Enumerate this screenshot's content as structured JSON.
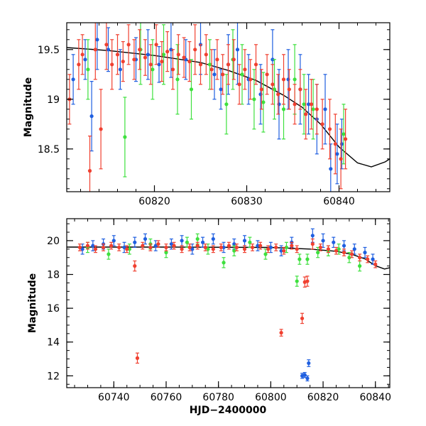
{
  "chart_data": [
    {
      "type": "scatter",
      "panel": "top",
      "title": "",
      "xlabel": "",
      "ylabel": "Magnitude",
      "xlim": [
        60810.5,
        60845.5
      ],
      "ylim": [
        19.77,
        18.07
      ],
      "y_inverted": true,
      "xticks": [
        60820,
        60830,
        60840
      ],
      "xtick_labels": [
        "60820",
        "60830",
        "60840"
      ],
      "yticks": [
        18.5,
        19,
        19.5
      ],
      "ytick_labels": [
        "18.5",
        "19",
        "19.5"
      ],
      "grid": false,
      "legend": "none",
      "colors": {
        "blue": "#1f5fe0",
        "green": "#3ee03e",
        "red": "#f04030",
        "model": "#000000"
      },
      "model_curve": {
        "x": [
          60810.5,
          60815,
          60820,
          60825,
          60828,
          60831,
          60834,
          60836,
          60838,
          60840,
          60842,
          60843.5,
          60845,
          60845.5
        ],
        "y": [
          19.52,
          19.49,
          19.44,
          19.37,
          19.29,
          19.19,
          19.04,
          18.92,
          18.75,
          18.52,
          18.36,
          18.32,
          18.37,
          18.4
        ]
      },
      "series": [
        {
          "color": "blue",
          "x": [
            60811.2,
            60812.5,
            60813.2,
            60813.8,
            60815.0,
            60816.3,
            60818.0,
            60819.3,
            60820.5,
            60821.8,
            60823.4,
            60825.0,
            60826.5,
            60827.2,
            60828.0,
            60829.0,
            60830.2,
            60831.5,
            60832.8,
            60833.5,
            60834.5,
            60835.8,
            60836.7,
            60837.6,
            60838.5,
            60839.1,
            60839.8,
            60840.3
          ],
          "y": [
            19.2,
            19.4,
            18.83,
            19.6,
            19.5,
            19.3,
            19.4,
            19.45,
            19.35,
            19.5,
            19.4,
            19.55,
            19.25,
            19.1,
            19.35,
            19.5,
            19.2,
            19.05,
            19.4,
            18.95,
            19.2,
            19.1,
            18.95,
            18.8,
            18.9,
            18.3,
            18.45,
            18.55
          ],
          "err": [
            0.25,
            0.2,
            0.35,
            0.3,
            0.22,
            0.2,
            0.22,
            0.25,
            0.18,
            0.28,
            0.2,
            0.3,
            0.25,
            0.2,
            0.3,
            0.35,
            0.25,
            0.3,
            0.3,
            0.35,
            0.3,
            0.35,
            0.3,
            0.35,
            0.35,
            0.25,
            0.3,
            0.25
          ]
        },
        {
          "color": "green",
          "x": [
            60812.8,
            60816.8,
            60818.5,
            60819.8,
            60821.0,
            60822.5,
            60824.0,
            60826.0,
            60827.8,
            60828.5,
            60829.5,
            60830.8,
            60831.8,
            60833.0,
            60834.0,
            60835.2,
            60836.2,
            60837.2,
            60840.5
          ],
          "y": [
            19.3,
            18.62,
            19.5,
            19.3,
            19.45,
            19.2,
            19.1,
            19.35,
            18.95,
            19.4,
            19.25,
            19.0,
            18.97,
            19.1,
            18.9,
            19.2,
            18.95,
            18.9,
            18.65
          ],
          "err": [
            0.3,
            0.4,
            0.35,
            0.3,
            0.3,
            0.35,
            0.3,
            0.25,
            0.3,
            0.3,
            0.3,
            0.3,
            0.3,
            0.3,
            0.3,
            0.35,
            0.3,
            0.3,
            0.3
          ]
        },
        {
          "color": "red",
          "x": [
            60810.8,
            60811.8,
            60812.2,
            60813.0,
            60813.6,
            60814.2,
            60814.8,
            60815.4,
            60816.0,
            60816.6,
            60817.2,
            60817.8,
            60818.4,
            60819.0,
            60819.6,
            60820.2,
            60820.8,
            60821.4,
            60822.0,
            60822.6,
            60823.2,
            60823.8,
            60824.4,
            60825.0,
            60825.6,
            60826.2,
            60826.8,
            60827.4,
            60828.0,
            60828.6,
            60829.2,
            60829.8,
            60830.4,
            60831.0,
            60831.6,
            60832.2,
            60832.8,
            60833.4,
            60834.0,
            60834.6,
            60835.2,
            60835.8,
            60836.4,
            60837.0,
            60837.6,
            60838.2,
            60839.0,
            60839.6,
            60840.2,
            60840.7
          ],
          "y": [
            19.0,
            19.35,
            19.45,
            18.28,
            19.5,
            18.7,
            19.55,
            19.35,
            19.45,
            19.38,
            19.55,
            19.4,
            19.5,
            19.42,
            19.35,
            19.55,
            19.38,
            19.48,
            19.3,
            19.45,
            19.42,
            19.38,
            19.5,
            19.35,
            19.45,
            19.3,
            19.4,
            19.25,
            19.35,
            19.4,
            19.15,
            19.3,
            19.2,
            19.35,
            19.1,
            19.25,
            19.15,
            19.05,
            19.2,
            19.1,
            18.95,
            19.1,
            18.85,
            18.95,
            18.9,
            18.75,
            18.7,
            18.55,
            18.4,
            18.6
          ],
          "err": [
            0.25,
            0.25,
            0.2,
            0.35,
            0.3,
            0.4,
            0.25,
            0.25,
            0.2,
            0.2,
            0.2,
            0.2,
            0.2,
            0.18,
            0.2,
            0.2,
            0.2,
            0.2,
            0.2,
            0.2,
            0.2,
            0.2,
            0.25,
            0.2,
            0.2,
            0.2,
            0.2,
            0.2,
            0.2,
            0.2,
            0.2,
            0.2,
            0.2,
            0.2,
            0.2,
            0.2,
            0.2,
            0.2,
            0.25,
            0.2,
            0.2,
            0.2,
            0.25,
            0.25,
            0.25,
            0.25,
            0.3,
            0.3,
            0.3,
            0.3
          ]
        }
      ]
    },
    {
      "type": "scatter",
      "panel": "bottom",
      "title": "",
      "xlabel": "HJD−2400000",
      "ylabel": "Magnitude",
      "xlim": [
        60722,
        60845.5
      ],
      "ylim": [
        21.3,
        11.3
      ],
      "y_inverted": true,
      "xticks": [
        60740,
        60760,
        60780,
        60800,
        60820,
        60840
      ],
      "xtick_labels": [
        "60740",
        "60760",
        "60780",
        "60800",
        "60820",
        "60840"
      ],
      "yticks": [
        12,
        14,
        16,
        18,
        20
      ],
      "ytick_labels": [
        "12",
        "14",
        "16",
        "18",
        "20"
      ],
      "grid": false,
      "legend": "none",
      "colors": {
        "blue": "#1f5fe0",
        "green": "#3ee03e",
        "red": "#f04030",
        "model": "#000000"
      },
      "model_curve": {
        "x": [
          60722,
          60760,
          60800,
          60815,
          60825,
          60831,
          60836,
          60840,
          60843.5,
          60845.5
        ],
        "y": [
          19.62,
          19.62,
          19.6,
          19.5,
          19.37,
          19.19,
          18.92,
          18.52,
          18.32,
          18.4
        ]
      },
      "series": [
        {
          "color": "blue",
          "x": [
            60728.0,
            60732.0,
            60736.0,
            60740.0,
            60744.0,
            60748.0,
            60752.0,
            60756.0,
            60762.0,
            60766.0,
            60770.0,
            60774.0,
            60778.0,
            60782.0,
            60786.0,
            60790.0,
            60795.0,
            60800.0,
            60804.0,
            60808.0,
            60812.0,
            60813.0,
            60814.0,
            60814.5,
            60816.0,
            60820.0,
            60824.0,
            60828.0,
            60832.0,
            60836.0,
            60839.0
          ],
          "y": [
            19.5,
            19.7,
            19.8,
            20.0,
            19.6,
            19.9,
            20.1,
            19.7,
            19.8,
            20.0,
            19.5,
            19.9,
            20.1,
            19.6,
            19.8,
            20.0,
            19.7,
            19.6,
            19.4,
            19.9,
            12.0,
            12.05,
            11.85,
            12.75,
            20.3,
            20.0,
            19.9,
            19.7,
            19.5,
            19.3,
            18.9
          ],
          "err": [
            0.3,
            0.3,
            0.3,
            0.3,
            0.3,
            0.3,
            0.3,
            0.3,
            0.3,
            0.3,
            0.3,
            0.3,
            0.3,
            0.3,
            0.3,
            0.3,
            0.3,
            0.3,
            0.3,
            0.3,
            0.15,
            0.15,
            0.15,
            0.2,
            0.4,
            0.4,
            0.3,
            0.3,
            0.3,
            0.3,
            0.3
          ]
        },
        {
          "color": "green",
          "x": [
            60730.0,
            60738.0,
            60746.0,
            60754.0,
            60760.0,
            60768.0,
            60772.0,
            60776.0,
            60782.0,
            60786.0,
            60792.0,
            60798.0,
            60806.0,
            60810.0,
            60811.0,
            60814.0,
            60818.0,
            60822.0,
            60826.0,
            60830.0,
            60834.0
          ],
          "y": [
            19.6,
            19.2,
            19.5,
            19.8,
            19.3,
            19.9,
            20.1,
            19.5,
            18.7,
            19.4,
            19.9,
            19.2,
            19.6,
            17.6,
            18.9,
            18.9,
            19.3,
            19.4,
            19.5,
            19.0,
            18.5
          ],
          "err": [
            0.3,
            0.3,
            0.3,
            0.3,
            0.3,
            0.3,
            0.3,
            0.3,
            0.3,
            0.3,
            0.3,
            0.3,
            0.3,
            0.3,
            0.3,
            0.3,
            0.3,
            0.3,
            0.3,
            0.3,
            0.3
          ]
        },
        {
          "color": "red",
          "x": [
            60727.0,
            60730.0,
            60733.0,
            60736.0,
            60739.0,
            60742.0,
            60745.0,
            60748.0,
            60749.0,
            60751.0,
            60754.0,
            60757.0,
            60760.0,
            60763.0,
            60766.0,
            60769.0,
            60772.0,
            60775.0,
            60778.0,
            60781.0,
            60784.0,
            60787.0,
            60790.0,
            60793.0,
            60796.0,
            60799.0,
            60802.0,
            60804.0,
            60805.0,
            60808.0,
            60810.0,
            60812.0,
            60813.0,
            60814.0,
            60816.0,
            60819.0,
            60822.0,
            60825.0,
            60828.0,
            60831.0,
            60834.0,
            60837.0,
            60840.0
          ],
          "y": [
            19.6,
            19.7,
            19.5,
            19.6,
            19.7,
            19.6,
            19.5,
            18.5,
            13.05,
            19.7,
            19.6,
            19.8,
            19.6,
            19.7,
            19.5,
            19.6,
            19.7,
            19.6,
            19.5,
            19.6,
            19.7,
            19.6,
            19.5,
            19.6,
            19.7,
            19.5,
            19.6,
            14.55,
            19.4,
            19.7,
            19.5,
            15.4,
            17.55,
            17.6,
            19.8,
            19.6,
            19.5,
            19.4,
            19.3,
            19.2,
            19.0,
            18.9,
            18.6
          ],
          "err": [
            0.2,
            0.2,
            0.2,
            0.2,
            0.2,
            0.2,
            0.2,
            0.3,
            0.3,
            0.2,
            0.2,
            0.2,
            0.2,
            0.2,
            0.2,
            0.2,
            0.2,
            0.2,
            0.2,
            0.2,
            0.2,
            0.2,
            0.2,
            0.2,
            0.2,
            0.2,
            0.2,
            0.2,
            0.2,
            0.2,
            0.2,
            0.3,
            0.3,
            0.3,
            0.3,
            0.2,
            0.2,
            0.2,
            0.2,
            0.2,
            0.2,
            0.2,
            0.2
          ]
        }
      ]
    }
  ]
}
